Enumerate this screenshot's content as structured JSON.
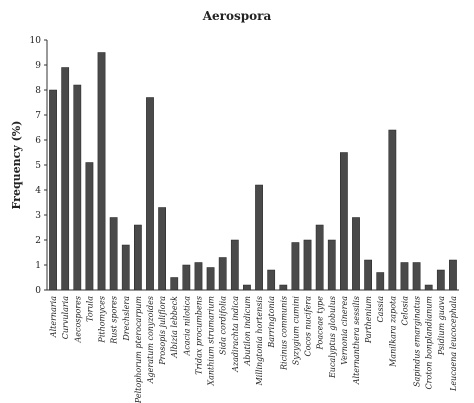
{
  "chart_data": {
    "type": "bar",
    "title": "Aerospora",
    "ylabel": "Frequency (%)",
    "xlabel": "",
    "ylim": [
      0,
      10
    ],
    "yticks": [
      0,
      1,
      2,
      3,
      4,
      5,
      6,
      7,
      8,
      9,
      10
    ],
    "grid": false,
    "bar_color": "#4a4a4a",
    "categories": [
      "Alternaria",
      "Curvularia",
      "Aecospores",
      "Torula",
      "Pithomyces",
      "Rust spores",
      "Drechslera",
      "Peltophorum pterocarpum",
      "Ageratum conyzoides",
      "Prosopis juliflora",
      "Albizia lebbeck",
      "Acacia nilotica",
      "Tridax procumbens",
      "Xanthium strumarium",
      "Sida cordifolia",
      "Azadirachta indica",
      "Abutilon indicum",
      "Millingtonia hortensis",
      "Barringtonia",
      "Ricinus communis",
      "Syzygium cumini",
      "Cocos nucifera",
      "Poaceae type",
      "Eucalyptus globulus",
      "Vernonia cinerea",
      "Alternanthera sessilis",
      "Parthenium",
      "Cassia",
      "Manilkara zapota",
      "Celosia",
      "Sapindus emarginatus",
      "Croton bonplandianum",
      "Psidium guava",
      "Leucaena leucocephala"
    ],
    "values": [
      8.0,
      8.9,
      8.2,
      5.1,
      9.5,
      2.9,
      1.8,
      2.6,
      7.7,
      3.3,
      0.5,
      1.0,
      1.1,
      0.9,
      1.3,
      2.0,
      0.2,
      4.2,
      0.8,
      0.2,
      1.9,
      2.0,
      2.6,
      2.0,
      5.5,
      2.9,
      1.2,
      0.7,
      6.4,
      1.1,
      1.1,
      0.2,
      0.8,
      1.2
    ]
  }
}
